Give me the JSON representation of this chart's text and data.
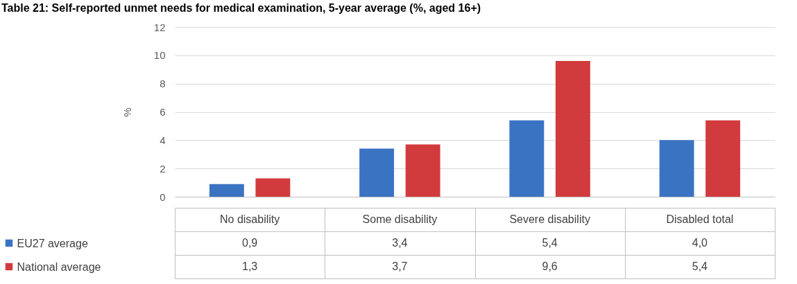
{
  "chart_data": {
    "type": "bar",
    "title": "Table 21: Self-reported unmet needs for medical examination, 5-year average (%, aged 16+)",
    "ylabel": "%",
    "categories": [
      "No disability",
      "Some disability",
      "Severe disability",
      "Disabled total"
    ],
    "series": [
      {
        "name": "EU27 average",
        "color": "#3b73c3",
        "values": [
          0.9,
          3.4,
          5.4,
          4.0
        ],
        "value_labels": [
          "0,9",
          "3,4",
          "5,4",
          "4,0"
        ]
      },
      {
        "name": "National average",
        "color": "#d13b3d",
        "values": [
          1.3,
          3.7,
          9.6,
          5.4
        ],
        "value_labels": [
          "1,3",
          "3,7",
          "9,6",
          "5,4"
        ]
      }
    ],
    "ylim": [
      0,
      12
    ],
    "yticks": [
      0,
      2,
      4,
      6,
      8,
      10,
      12
    ],
    "grid": "y",
    "legend": "bottom left"
  }
}
